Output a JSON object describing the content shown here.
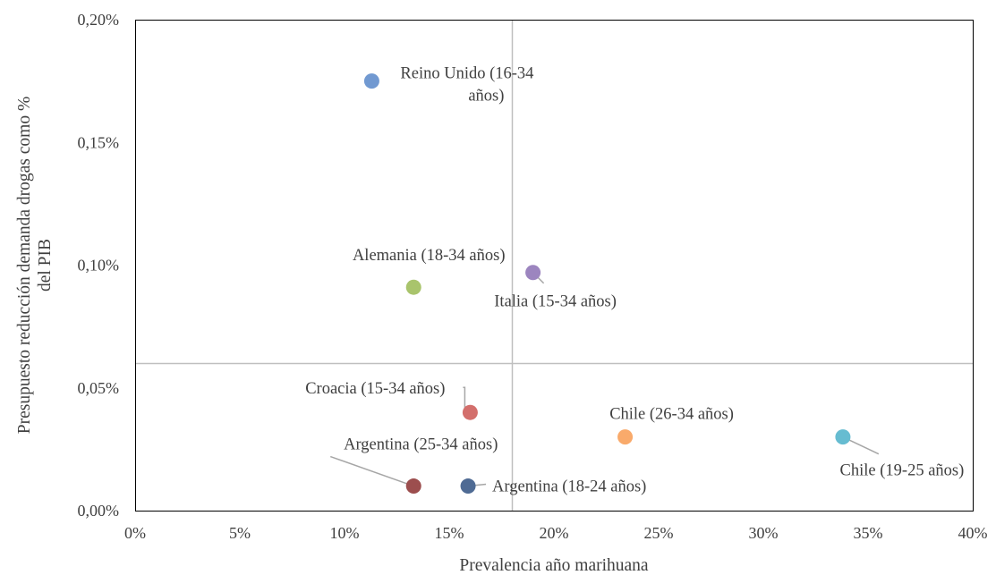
{
  "chart_data": {
    "type": "scatter",
    "title": "",
    "xlabel": "Prevalencia año marihuana",
    "ylabel_lines": [
      "Presupuesto reducción demanda drogas como %",
      "del PIB"
    ],
    "xlim": [
      0,
      40
    ],
    "ylim": [
      0,
      0.2
    ],
    "x_ticks": [
      0,
      5,
      10,
      15,
      20,
      25,
      30,
      35,
      40
    ],
    "x_tick_labels": [
      "0%",
      "5%",
      "10%",
      "15%",
      "20%",
      "25%",
      "30%",
      "35%",
      "40%"
    ],
    "y_ticks": [
      0,
      0.05,
      0.1,
      0.15,
      0.2
    ],
    "y_tick_labels": [
      "0,00%",
      "0,05%",
      "0,10%",
      "0,15%",
      "0,20%"
    ],
    "grid": false,
    "reference_lines": {
      "x": 18,
      "y": 0.06,
      "color": "#bfbfbf"
    },
    "points": [
      {
        "label": [
          "Reino Unido (16-34",
          "años)"
        ],
        "x": 11.3,
        "y": 0.175,
        "color": "#7199d1"
      },
      {
        "label": [
          "Alemania (18-34 años)"
        ],
        "x": 13.3,
        "y": 0.091,
        "color": "#a9c46c"
      },
      {
        "label": [
          "Italia (15-34 años)"
        ],
        "x": 19.0,
        "y": 0.097,
        "color": "#9c85bf"
      },
      {
        "label": [
          "Croacia (15-34 años)"
        ],
        "x": 16.0,
        "y": 0.04,
        "color": "#d36f6c"
      },
      {
        "label": [
          "Chile (26-34 años)"
        ],
        "x": 23.4,
        "y": 0.03,
        "color": "#f9aa6b"
      },
      {
        "label": [
          "Chile (19-25 años)"
        ],
        "x": 33.8,
        "y": 0.03,
        "color": "#66bcd1"
      },
      {
        "label": [
          "Argentina (25-34 años)"
        ],
        "x": 13.3,
        "y": 0.01,
        "color": "#9c4e4e"
      },
      {
        "label": [
          "Argentina (18-24 años)"
        ],
        "x": 15.9,
        "y": 0.01,
        "color": "#4f6b94"
      }
    ]
  }
}
